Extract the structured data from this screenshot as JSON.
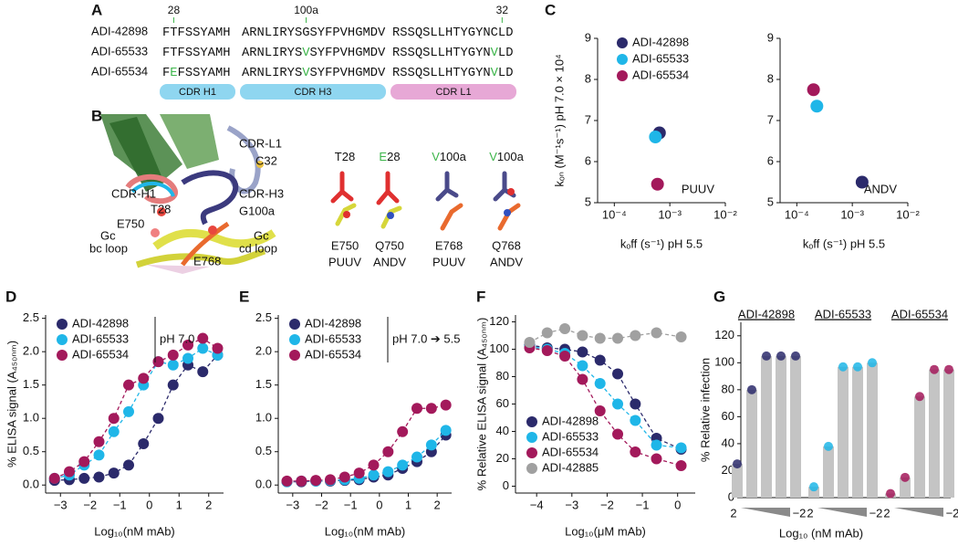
{
  "A": {
    "label": "A",
    "positions": [
      "28",
      "100a",
      "32"
    ],
    "rows": [
      {
        "name": "ADI-42898",
        "h1": [
          {
            "text": "FTFSSYAMH"
          }
        ],
        "h3": [
          {
            "text": "ARNLIRYSGSYFPVHGMDV"
          }
        ],
        "l1": [
          {
            "text": "RSSQSLLHTYGYNCLD"
          }
        ]
      },
      {
        "name": "ADI-65533",
        "h1": [
          {
            "text": "FTFSSYAMH"
          }
        ],
        "h3": [
          {
            "text": "ARNLIRYS"
          },
          {
            "text": "V",
            "color": "#3cb54a"
          },
          {
            "text": "SYFPVHGMDV"
          }
        ],
        "l1": [
          {
            "text": "RSSQSLLHTYGYN"
          },
          {
            "text": "V",
            "color": "#3cb54a"
          },
          {
            "text": "LD"
          }
        ]
      },
      {
        "name": "ADI-65534",
        "h1": [
          {
            "text": "F"
          },
          {
            "text": "E",
            "color": "#3cb54a"
          },
          {
            "text": "FSSYAMH"
          }
        ],
        "h3": [
          {
            "text": "ARNLIRYS"
          },
          {
            "text": "V",
            "color": "#3cb54a"
          },
          {
            "text": "SYFPVHGMDV"
          }
        ],
        "l1": [
          {
            "text": "RSSQSLLHTYGYN"
          },
          {
            "text": "V",
            "color": "#3cb54a"
          },
          {
            "text": "LD"
          }
        ]
      }
    ],
    "regions": [
      {
        "label": "CDR H1",
        "color": "#8fd6f0"
      },
      {
        "label": "CDR H3",
        "color": "#8fd6f0"
      },
      {
        "label": "CDR L1",
        "color": "#e7a8d6"
      }
    ]
  },
  "B": {
    "label": "B",
    "structure_labels": [
      {
        "text": "CDR-L1",
        "color": "#c8966a"
      },
      {
        "text": "C32",
        "color": "#222222"
      },
      {
        "text": "CDR-H1",
        "color": "#1fb6e8"
      },
      {
        "text": "CDR-H3",
        "color": "#2b2a6b"
      },
      {
        "text": "T28",
        "color": "#222222"
      },
      {
        "text": "G100a",
        "color": "#222222"
      },
      {
        "text": "E750",
        "color": "#222222"
      },
      {
        "text": "Gc",
        "color": "#a9a91f"
      },
      {
        "text": "bc loop",
        "color": "#a9a91f"
      },
      {
        "text": "Gc",
        "color": "#d9622b"
      },
      {
        "text": "cd loop",
        "color": "#d9622b"
      },
      {
        "text": "E768",
        "color": "#222222"
      }
    ],
    "insets": [
      {
        "top": [
          {
            "text": "T28"
          }
        ],
        "residue": "E750",
        "virus": "PUUV"
      },
      {
        "top": [
          {
            "text": "E",
            "color": "#3cb54a"
          },
          {
            "text": "28"
          }
        ],
        "residue": "Q750",
        "virus": "ANDV"
      },
      {
        "top": [
          {
            "text": "V",
            "color": "#3cb54a"
          },
          {
            "text": "100a"
          }
        ],
        "residue": "E768",
        "virus": "PUUV"
      },
      {
        "top": [
          {
            "text": "V",
            "color": "#3cb54a"
          },
          {
            "text": "100a"
          }
        ],
        "residue": "Q768",
        "virus": "ANDV"
      }
    ]
  },
  "C": {
    "label": "C",
    "type": "scatter",
    "ylabel": "kₒₙ (M⁻¹s⁻¹) pH 7.0 × 10⁴",
    "xlabel": "kₒff (s⁻¹) pH 5.5",
    "xscale": "log",
    "xlim": [
      5e-05,
      0.01
    ],
    "xticks": [
      {
        "value": 0.0001,
        "label": "10⁻⁴"
      },
      {
        "value": 0.001,
        "label": "10⁻³"
      },
      {
        "value": 0.01,
        "label": "10⁻²"
      }
    ],
    "ylim": [
      5,
      9
    ],
    "yticks": [
      5,
      6,
      7,
      8,
      9
    ],
    "series": [
      {
        "name": "ADI-42898",
        "color": "#2b2a6b"
      },
      {
        "name": "ADI-65533",
        "color": "#1fb6e8"
      },
      {
        "name": "ADI-65534",
        "color": "#a3195b"
      }
    ],
    "plots": [
      {
        "annotation": "PUUV",
        "x": [
          0.00065,
          0.00055,
          0.0006
        ],
        "values": [
          6.7,
          6.6,
          5.45
        ]
      },
      {
        "annotation": "ANDV",
        "x": [
          0.0015,
          0.00023,
          0.0002
        ],
        "values": [
          5.5,
          7.35,
          7.75
        ]
      }
    ]
  },
  "D": {
    "label": "D",
    "type": "line",
    "ylabel": "% ELISA signal (A₄₅₀ₙₘ)",
    "xlabel": "Log₁₀(nM mAb)",
    "note": "pH 7.0",
    "legend": "top-left",
    "xlim": [
      -3.5,
      2.5
    ],
    "xticks": [
      {
        "value": -3,
        "label": "−3"
      },
      {
        "value": -2,
        "label": "−2"
      },
      {
        "value": -1,
        "label": "−1"
      },
      0,
      1,
      2
    ],
    "ylim": [
      -0.12,
      2.55
    ],
    "yticks": [
      {
        "value": 0,
        "label": "0.0"
      },
      0.5,
      {
        "value": 1,
        "label": "1.0"
      },
      1.5,
      {
        "value": 2,
        "label": "2.0"
      },
      2.5
    ],
    "x": [
      -3.2,
      -2.7,
      -2.2,
      -1.7,
      -1.2,
      -0.7,
      -0.2,
      0.3,
      0.8,
      1.3,
      1.8,
      2.3
    ],
    "series": [
      {
        "name": "ADI-42898",
        "color": "#2b2a6b",
        "values": [
          0.07,
          0.08,
          0.1,
          0.12,
          0.18,
          0.3,
          0.62,
          1.0,
          1.5,
          1.8,
          1.7,
          1.95
        ]
      },
      {
        "name": "ADI-65533",
        "color": "#1fb6e8",
        "values": [
          0.1,
          0.15,
          0.3,
          0.45,
          0.8,
          1.1,
          1.5,
          1.85,
          1.8,
          1.9,
          2.05,
          1.95
        ]
      },
      {
        "name": "ADI-65534",
        "color": "#a3195b",
        "values": [
          0.1,
          0.2,
          0.35,
          0.65,
          1.0,
          1.5,
          1.6,
          1.85,
          1.95,
          2.1,
          2.2,
          2.05
        ]
      }
    ]
  },
  "E": {
    "label": "E",
    "type": "line",
    "xlabel": "Log₁₀(nM mAb)",
    "note": "pH 7.0 ➔ 5.5",
    "legend": "top-left",
    "xlim": [
      -3.5,
      2.5
    ],
    "xticks": [
      {
        "value": -3,
        "label": "−3"
      },
      {
        "value": -2,
        "label": "−2"
      },
      {
        "value": -1,
        "label": "−1"
      },
      0,
      1,
      2
    ],
    "ylim": [
      -0.12,
      2.55
    ],
    "yticks": [
      {
        "value": 0,
        "label": "0.0"
      },
      0.5,
      {
        "value": 1,
        "label": "1.0"
      },
      1.5,
      {
        "value": 2,
        "label": "2.0"
      },
      2.5
    ],
    "x": [
      -3.2,
      -2.7,
      -2.2,
      -1.7,
      -1.2,
      -0.7,
      -0.2,
      0.3,
      0.8,
      1.3,
      1.8,
      2.3
    ],
    "series": [
      {
        "name": "ADI-42898",
        "color": "#2b2a6b",
        "values": [
          0.05,
          0.05,
          0.06,
          0.06,
          0.07,
          0.08,
          0.12,
          0.15,
          0.25,
          0.35,
          0.5,
          0.75
        ]
      },
      {
        "name": "ADI-65533",
        "color": "#1fb6e8",
        "values": [
          0.05,
          0.06,
          0.06,
          0.07,
          0.08,
          0.1,
          0.15,
          0.2,
          0.3,
          0.42,
          0.6,
          0.82
        ]
      },
      {
        "name": "ADI-65534",
        "color": "#a3195b",
        "values": [
          0.06,
          0.06,
          0.07,
          0.08,
          0.12,
          0.18,
          0.3,
          0.5,
          0.8,
          1.15,
          1.15,
          1.2
        ]
      }
    ]
  },
  "F": {
    "label": "F",
    "type": "line",
    "ylabel": "% Relative ELISA signal (A₄₅₀ₙₘ)",
    "xlabel": "Log₁₀(μM mAb)",
    "legend": "bottom-left",
    "xlim": [
      -4.6,
      0.5
    ],
    "xticks": [
      {
        "value": -4,
        "label": "−4"
      },
      {
        "value": -3,
        "label": "−3"
      },
      {
        "value": -2,
        "label": "−2"
      },
      {
        "value": -1,
        "label": "−1"
      },
      0
    ],
    "ylim": [
      -5,
      125
    ],
    "yticks": [
      0,
      20,
      40,
      60,
      80,
      100,
      120
    ],
    "x": [
      -4.2,
      -3.7,
      -3.2,
      -2.7,
      -2.2,
      -1.7,
      -1.2,
      -0.6,
      0.1
    ],
    "series": [
      {
        "name": "ADI-42898",
        "color": "#2b2a6b",
        "values": [
          103,
          101,
          100,
          98,
          92,
          82,
          60,
          35,
          27
        ]
      },
      {
        "name": "ADI-65533",
        "color": "#1fb6e8",
        "values": [
          102,
          100,
          97,
          88,
          75,
          60,
          48,
          30,
          28
        ]
      },
      {
        "name": "ADI-65534",
        "color": "#a3195b",
        "values": [
          101,
          99,
          95,
          78,
          55,
          38,
          25,
          20,
          15
        ]
      },
      {
        "name": "ADI-42885",
        "color": "#a0a0a0",
        "values": [
          105,
          112,
          115,
          110,
          108,
          108,
          110,
          112,
          109
        ]
      }
    ]
  },
  "G": {
    "label": "G",
    "type": "bar",
    "ylabel": "% Relative infection",
    "xlabel": "Log₁₀ (nM mAb)",
    "dose_labels": [
      "2",
      "−2"
    ],
    "ylim": [
      0,
      130
    ],
    "yticks": [
      0,
      20,
      40,
      60,
      80,
      100,
      120
    ],
    "bar_color": "#c4c4c4",
    "groups": [
      {
        "name": "ADI-42898",
        "color": "#2b2a6b",
        "values": [
          25,
          80,
          105,
          105,
          105
        ]
      },
      {
        "name": "ADI-65533",
        "color": "#1fb6e8",
        "values": [
          8,
          38,
          97,
          97,
          100
        ]
      },
      {
        "name": "ADI-65534",
        "color": "#a3195b",
        "values": [
          3,
          15,
          75,
          95,
          95
        ]
      }
    ]
  }
}
